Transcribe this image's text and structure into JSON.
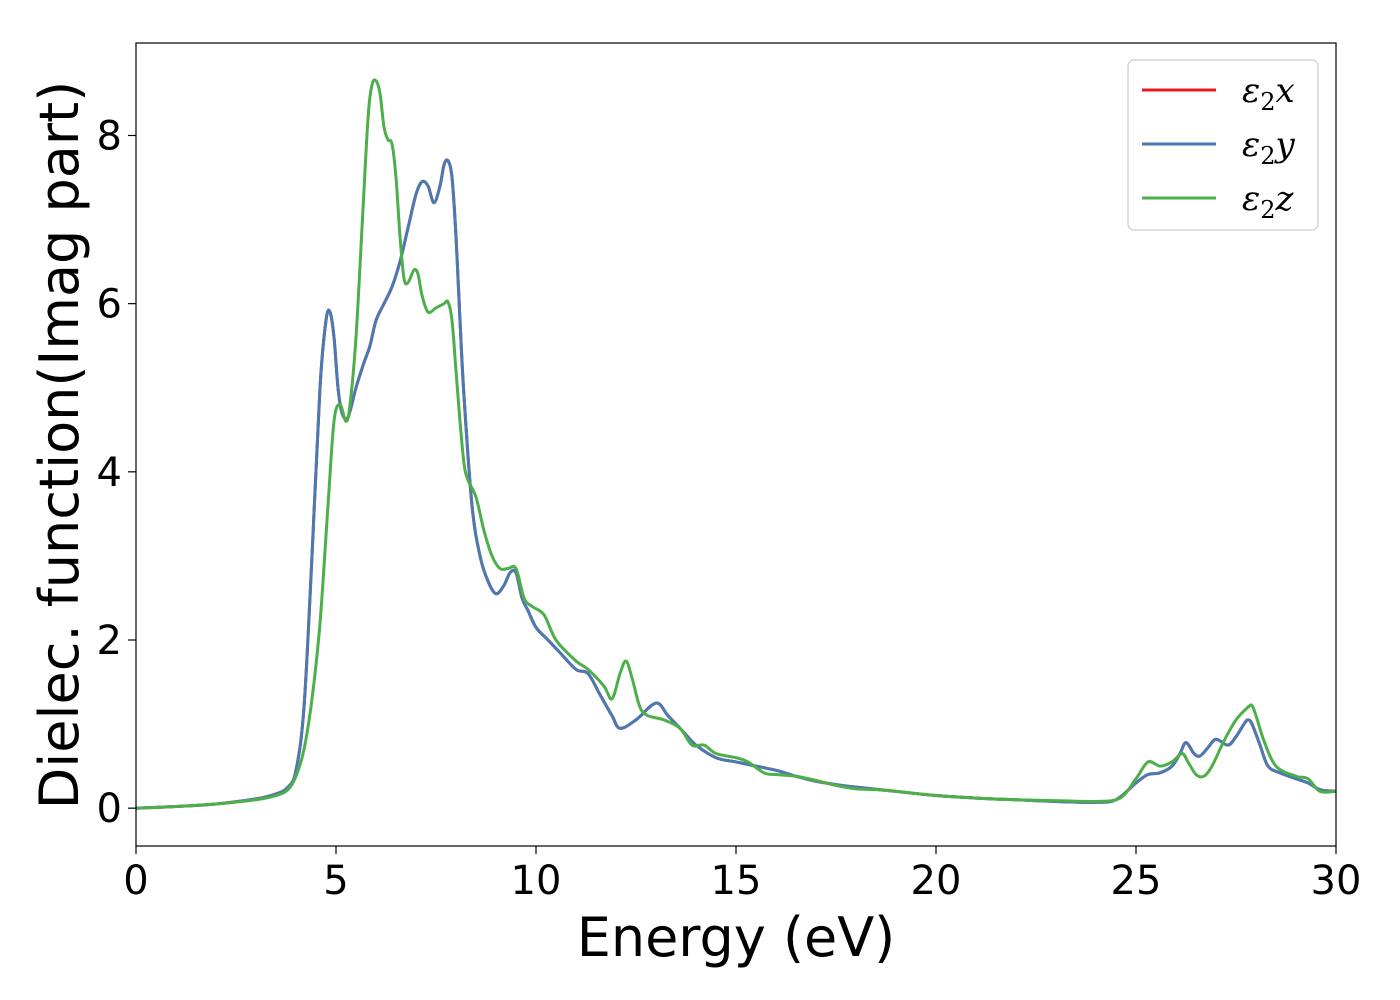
{
  "chart_data": {
    "type": "line",
    "title": "",
    "xlabel": "Energy (eV)",
    "ylabel": "Dielec. function(Imag part)",
    "xlim": [
      0,
      30
    ],
    "ylim": [
      -0.45,
      9.1
    ],
    "xticks": [
      0,
      5,
      10,
      15,
      20,
      25,
      30
    ],
    "yticks": [
      0,
      2,
      4,
      6,
      8
    ],
    "grid": false,
    "legend_position": "top-right",
    "series": [
      {
        "name": "ε2x",
        "legend_base": "ε",
        "legend_sub": "2",
        "legend_var": "x",
        "color": "#e41a1c",
        "x": [
          0,
          1,
          2,
          3,
          3.5,
          3.8,
          4.0,
          4.2,
          4.4,
          4.6,
          4.75,
          4.85,
          4.95,
          5.05,
          5.15,
          5.3,
          5.5,
          5.7,
          5.85,
          6.0,
          6.2,
          6.4,
          6.6,
          6.8,
          7.0,
          7.15,
          7.3,
          7.45,
          7.6,
          7.7,
          7.8,
          7.9,
          8.0,
          8.1,
          8.2,
          8.4,
          8.6,
          8.8,
          9.0,
          9.2,
          9.35,
          9.5,
          9.65,
          9.8,
          10.0,
          10.3,
          10.6,
          11.0,
          11.3,
          11.6,
          11.9,
          12.1,
          12.5,
          13.0,
          13.3,
          13.7,
          14.0,
          14.5,
          15.0,
          15.5,
          16.0,
          16.5,
          17.0,
          17.5,
          18.0,
          19.0,
          20.0,
          21.0,
          22.0,
          23.0,
          24.0,
          24.5,
          25.0,
          25.3,
          25.6,
          25.9,
          26.1,
          26.25,
          26.45,
          26.6,
          26.8,
          27.0,
          27.3,
          27.5,
          27.7,
          27.8,
          27.9,
          28.1,
          28.3,
          28.6,
          29.0,
          29.3,
          29.6,
          30.0
        ],
        "values": [
          0,
          0.02,
          0.05,
          0.11,
          0.17,
          0.25,
          0.45,
          1.2,
          3.0,
          5.0,
          5.8,
          5.9,
          5.6,
          5.0,
          4.7,
          4.65,
          5.0,
          5.3,
          5.5,
          5.8,
          6.0,
          6.2,
          6.5,
          6.9,
          7.3,
          7.45,
          7.4,
          7.2,
          7.4,
          7.65,
          7.7,
          7.5,
          6.8,
          5.8,
          4.9,
          3.6,
          3.0,
          2.7,
          2.55,
          2.65,
          2.8,
          2.8,
          2.5,
          2.35,
          2.15,
          2.0,
          1.85,
          1.65,
          1.6,
          1.35,
          1.1,
          0.95,
          1.05,
          1.25,
          1.1,
          0.9,
          0.75,
          0.6,
          0.55,
          0.5,
          0.45,
          0.38,
          0.32,
          0.28,
          0.25,
          0.2,
          0.15,
          0.12,
          0.1,
          0.08,
          0.07,
          0.1,
          0.3,
          0.4,
          0.42,
          0.5,
          0.65,
          0.78,
          0.65,
          0.62,
          0.72,
          0.82,
          0.75,
          0.85,
          1.0,
          1.05,
          1.0,
          0.75,
          0.5,
          0.42,
          0.35,
          0.3,
          0.22,
          0.2
        ]
      },
      {
        "name": "ε2y",
        "legend_base": "ε",
        "legend_sub": "2",
        "legend_var": "y",
        "color": "#4a7ab3",
        "x": [
          0,
          1,
          2,
          3,
          3.5,
          3.8,
          4.0,
          4.2,
          4.4,
          4.6,
          4.75,
          4.85,
          4.95,
          5.05,
          5.15,
          5.3,
          5.5,
          5.7,
          5.85,
          6.0,
          6.2,
          6.4,
          6.6,
          6.8,
          7.0,
          7.15,
          7.3,
          7.45,
          7.6,
          7.7,
          7.8,
          7.9,
          8.0,
          8.1,
          8.2,
          8.4,
          8.6,
          8.8,
          9.0,
          9.2,
          9.35,
          9.5,
          9.65,
          9.8,
          10.0,
          10.3,
          10.6,
          11.0,
          11.3,
          11.6,
          11.9,
          12.1,
          12.5,
          13.0,
          13.3,
          13.7,
          14.0,
          14.5,
          15.0,
          15.5,
          16.0,
          16.5,
          17.0,
          17.5,
          18.0,
          19.0,
          20.0,
          21.0,
          22.0,
          23.0,
          24.0,
          24.5,
          25.0,
          25.3,
          25.6,
          25.9,
          26.1,
          26.25,
          26.45,
          26.6,
          26.8,
          27.0,
          27.3,
          27.5,
          27.7,
          27.8,
          27.9,
          28.1,
          28.3,
          28.6,
          29.0,
          29.3,
          29.6,
          30.0
        ],
        "values": [
          0,
          0.02,
          0.05,
          0.11,
          0.17,
          0.25,
          0.45,
          1.2,
          3.0,
          5.0,
          5.8,
          5.9,
          5.6,
          5.0,
          4.7,
          4.65,
          5.0,
          5.3,
          5.5,
          5.8,
          6.0,
          6.2,
          6.5,
          6.9,
          7.3,
          7.45,
          7.4,
          7.2,
          7.4,
          7.65,
          7.7,
          7.5,
          6.8,
          5.8,
          4.9,
          3.6,
          3.0,
          2.7,
          2.55,
          2.65,
          2.8,
          2.8,
          2.5,
          2.35,
          2.15,
          2.0,
          1.85,
          1.65,
          1.6,
          1.35,
          1.1,
          0.95,
          1.05,
          1.25,
          1.1,
          0.9,
          0.75,
          0.6,
          0.55,
          0.5,
          0.45,
          0.38,
          0.32,
          0.28,
          0.25,
          0.2,
          0.15,
          0.12,
          0.1,
          0.08,
          0.07,
          0.1,
          0.3,
          0.4,
          0.42,
          0.5,
          0.65,
          0.78,
          0.65,
          0.62,
          0.72,
          0.82,
          0.75,
          0.85,
          1.0,
          1.05,
          1.0,
          0.75,
          0.5,
          0.42,
          0.35,
          0.3,
          0.22,
          0.2
        ]
      },
      {
        "name": "ε2z",
        "legend_base": "ε",
        "legend_sub": "2",
        "legend_var": "z",
        "color": "#4daf4a",
        "x": [
          0,
          1,
          2,
          3,
          3.5,
          3.8,
          4.0,
          4.2,
          4.4,
          4.6,
          4.8,
          4.95,
          5.1,
          5.25,
          5.35,
          5.5,
          5.65,
          5.8,
          5.9,
          6.0,
          6.1,
          6.2,
          6.3,
          6.4,
          6.5,
          6.6,
          6.7,
          6.8,
          6.95,
          7.05,
          7.15,
          7.3,
          7.5,
          7.7,
          7.8,
          7.9,
          8.0,
          8.1,
          8.2,
          8.3,
          8.5,
          8.7,
          8.9,
          9.1,
          9.3,
          9.5,
          9.7,
          9.9,
          10.2,
          10.5,
          11.0,
          11.3,
          11.7,
          11.9,
          12.1,
          12.25,
          12.4,
          12.6,
          12.8,
          13.2,
          13.6,
          13.9,
          14.2,
          14.5,
          15.0,
          15.3,
          15.7,
          16.0,
          16.5,
          17.0,
          17.5,
          18.0,
          18.5,
          19.0,
          20.0,
          21.0,
          22.0,
          23.0,
          24.0,
          24.6,
          25.0,
          25.3,
          25.6,
          25.9,
          26.15,
          26.3,
          26.5,
          26.7,
          26.9,
          27.2,
          27.5,
          27.8,
          27.9,
          28.0,
          28.2,
          28.5,
          29.0,
          29.3,
          29.6,
          30.0
        ],
        "values": [
          0,
          0.02,
          0.05,
          0.1,
          0.15,
          0.22,
          0.38,
          0.7,
          1.3,
          2.2,
          3.6,
          4.6,
          4.8,
          4.6,
          4.8,
          5.6,
          6.9,
          8.2,
          8.6,
          8.65,
          8.5,
          8.1,
          7.95,
          7.9,
          7.5,
          6.8,
          6.3,
          6.25,
          6.4,
          6.35,
          6.1,
          5.9,
          5.95,
          6.0,
          6.02,
          5.8,
          5.2,
          4.6,
          4.1,
          3.9,
          3.7,
          3.3,
          3.0,
          2.85,
          2.85,
          2.85,
          2.5,
          2.4,
          2.3,
          2.0,
          1.75,
          1.65,
          1.45,
          1.3,
          1.6,
          1.75,
          1.55,
          1.2,
          1.1,
          1.05,
          0.95,
          0.75,
          0.75,
          0.65,
          0.6,
          0.55,
          0.42,
          0.4,
          0.38,
          0.33,
          0.27,
          0.23,
          0.22,
          0.2,
          0.15,
          0.12,
          0.1,
          0.09,
          0.08,
          0.12,
          0.35,
          0.55,
          0.5,
          0.55,
          0.65,
          0.55,
          0.4,
          0.38,
          0.5,
          0.8,
          1.05,
          1.2,
          1.22,
          1.1,
          0.8,
          0.5,
          0.38,
          0.35,
          0.2,
          0.2
        ]
      }
    ]
  }
}
